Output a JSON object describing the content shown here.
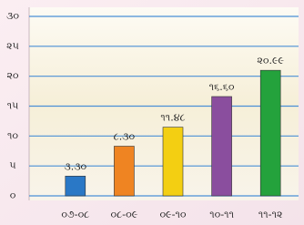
{
  "chart_data": {
    "type": "bar",
    "categories": [
      "૦૭-૦૮",
      "૦૮-૦૯",
      "૦૯-૧૦",
      "૧૦-૧૧",
      "૧૧-૧૨"
    ],
    "values": [
      3.3,
      8.3,
      11.48,
      16.6,
      20.99
    ],
    "value_labels": [
      "૩.૩૦",
      "૮.૩૦",
      "૧૧.૪૮",
      "૧૬.૬૦",
      "૨૦.૯૯"
    ],
    "colors": [
      "#2a78c6",
      "#ef8422",
      "#f3cf12",
      "#8a4e9e",
      "#24a23c"
    ],
    "ylim": [
      0,
      30
    ],
    "yticks": [
      {
        "value": 0,
        "label": "૦"
      },
      {
        "value": 5,
        "label": "૫"
      },
      {
        "value": 10,
        "label": "૧૦"
      },
      {
        "value": 15,
        "label": "૧૫"
      },
      {
        "value": 20,
        "label": "૨૦"
      },
      {
        "value": 25,
        "label": "૨૫"
      },
      {
        "value": 30,
        "label": "૩૦"
      }
    ],
    "grid": true,
    "grid_color": "#4a8fd6"
  }
}
